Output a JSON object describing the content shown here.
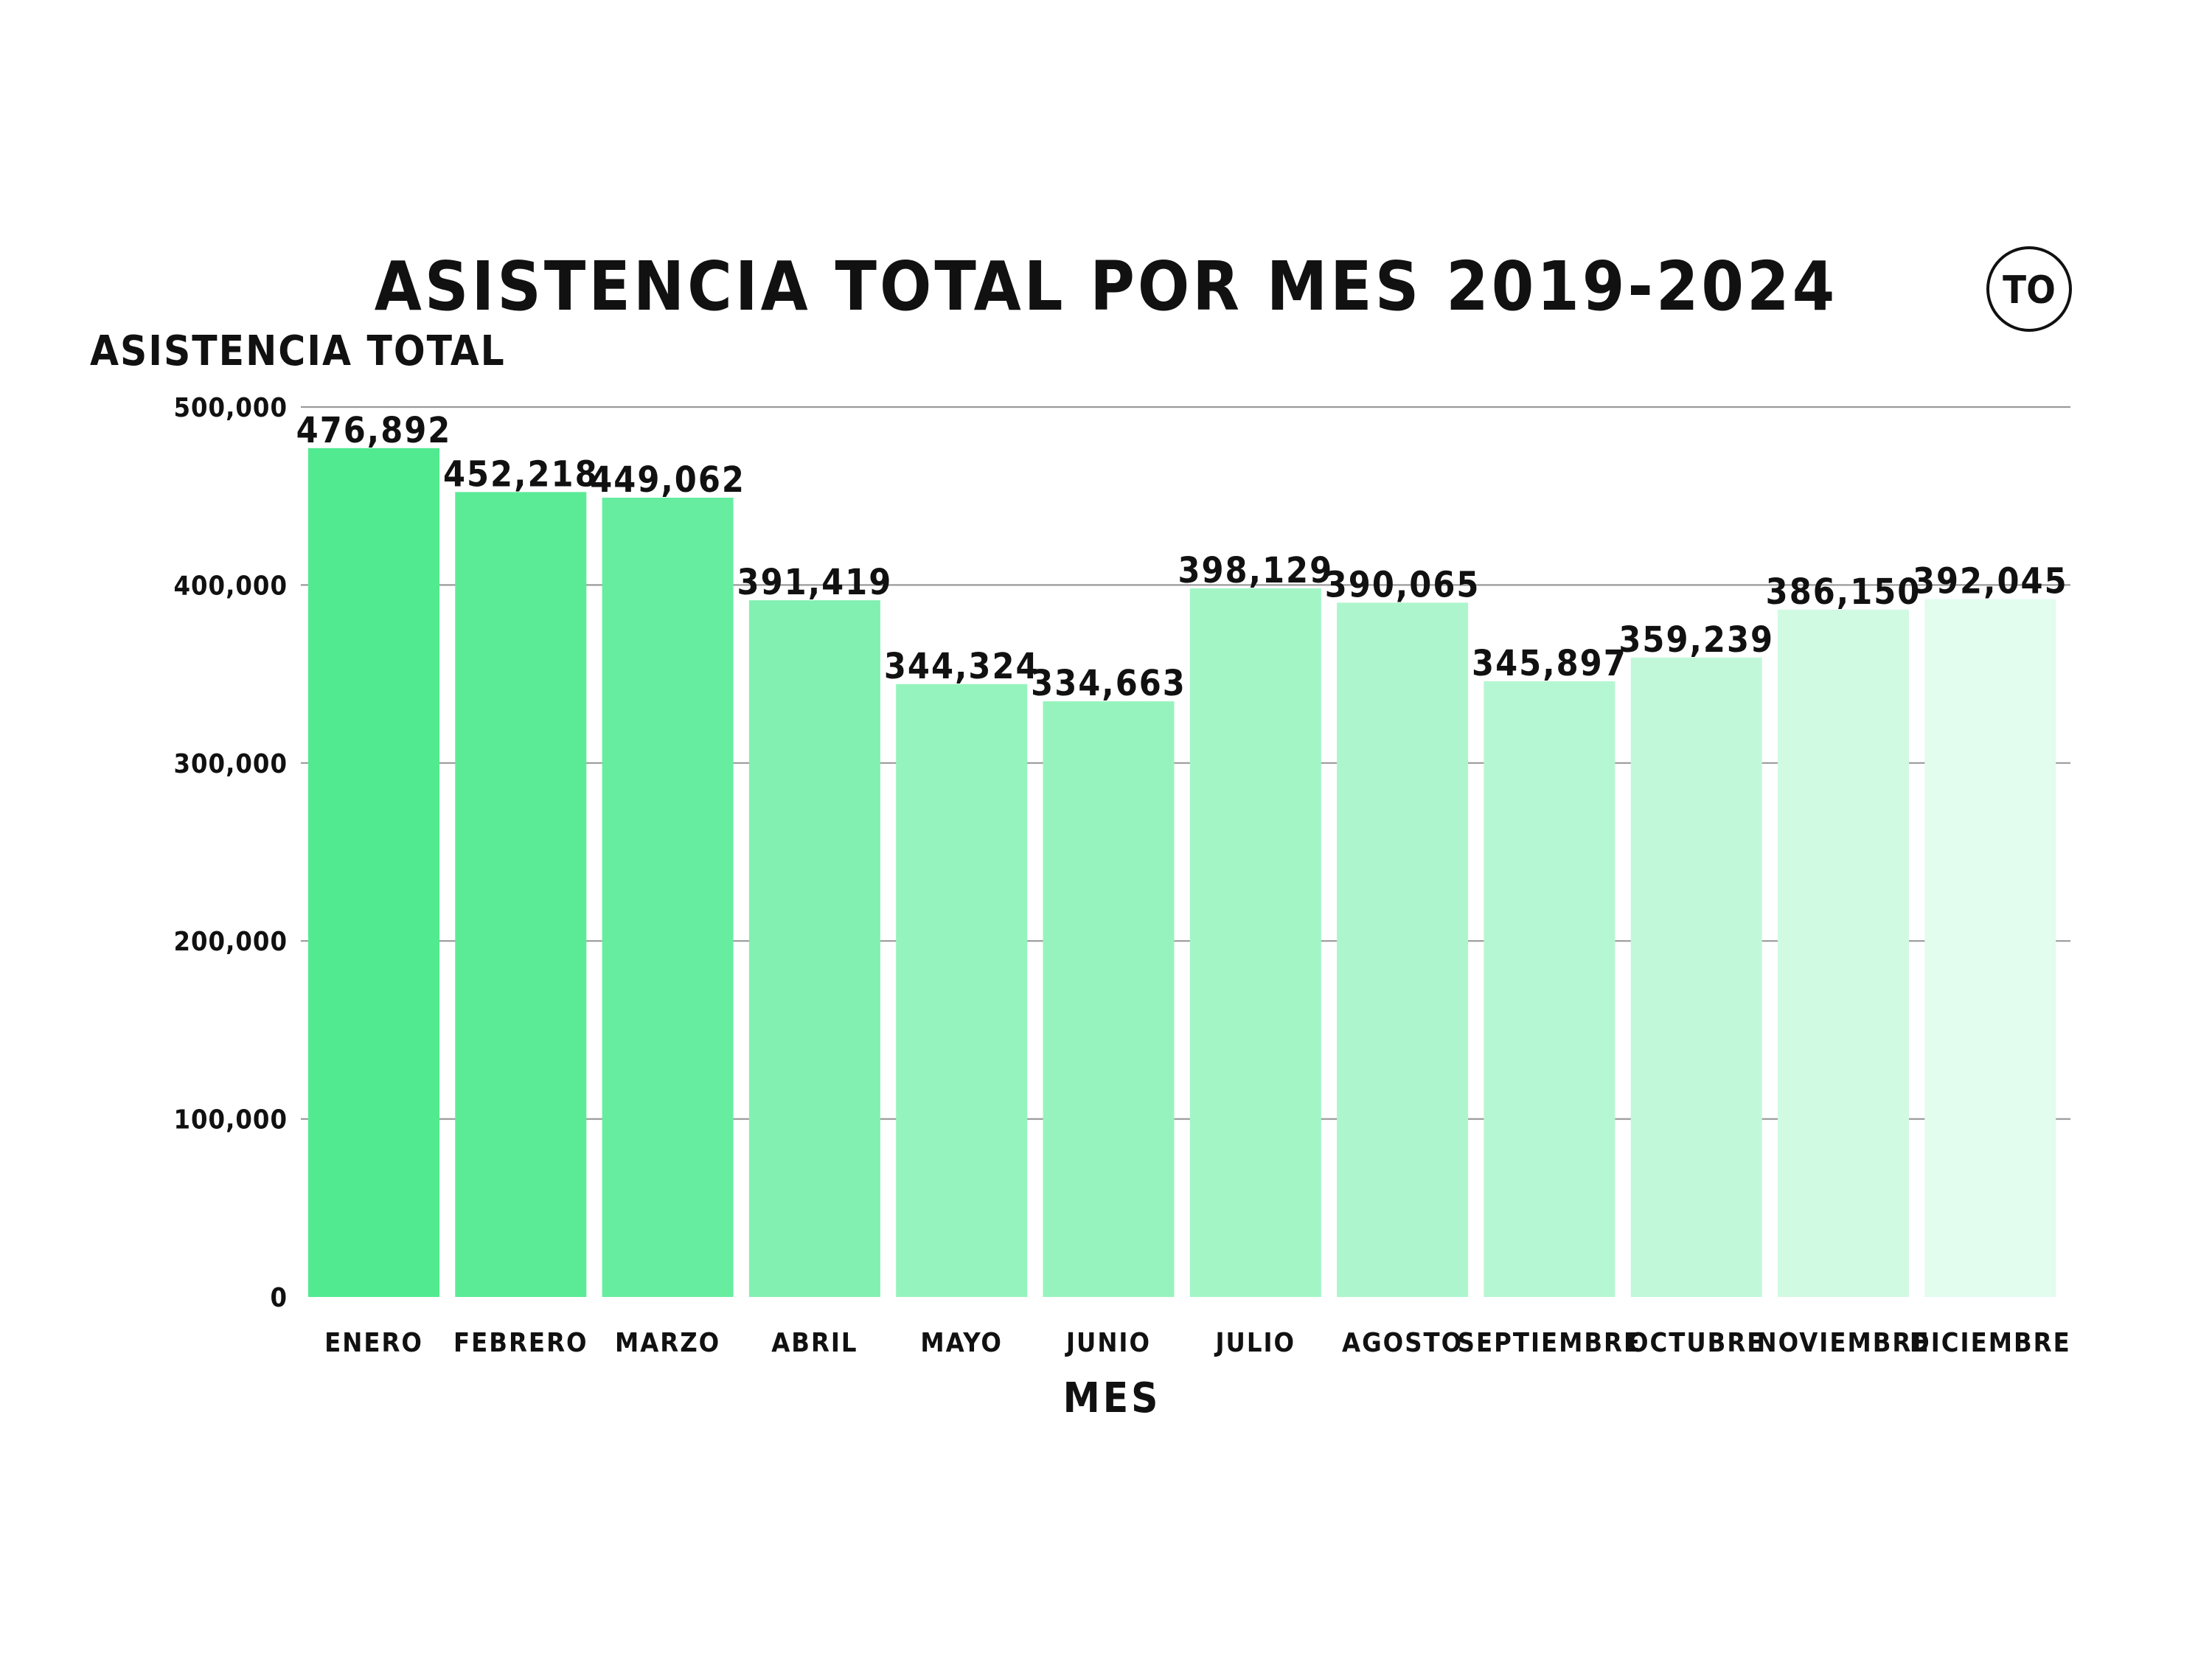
{
  "chart_data": {
    "type": "bar",
    "title": "ASISTENCIA TOTAL POR MES 2019-2024",
    "ylabel": "ASISTENCIA TOTAL",
    "xlabel": "MES",
    "ylim": [
      0,
      500000
    ],
    "yticks": [
      "0",
      "100,000",
      "200,000",
      "300,000",
      "400,000",
      "500,000"
    ],
    "ytick_values": [
      0,
      100000,
      200000,
      300000,
      400000,
      500000
    ],
    "grid": true,
    "categories": [
      "ENERO",
      "FEBRERO",
      "MARZO",
      "ABRIL",
      "MAYO",
      "JUNIO",
      "JULIO",
      "AGOSTO",
      "SEPTIEMBRE",
      "OCTUBRE",
      "NOVIEMBRE",
      "DICIEMBRE"
    ],
    "values": [
      476892,
      452218,
      449062,
      391419,
      344324,
      334663,
      398129,
      390065,
      345897,
      359239,
      386150,
      392045
    ],
    "data_labels": [
      "476,892",
      "452,218",
      "449,062",
      "391,419",
      "344,324",
      "334,663",
      "398,129",
      "390,065",
      "345,897",
      "359,239",
      "386,150",
      "392,045"
    ],
    "colors": [
      "#52EA90",
      "#5BEB96",
      "#67ED9F",
      "#81F0B0",
      "#95F3BD",
      "#97F3BE",
      "#A3F5C6",
      "#ADF6CD",
      "#B6F7D3",
      "#C1F8DA",
      "#D1FAE3",
      "#E2FCEE"
    ]
  },
  "logo": {
    "text": "TO"
  }
}
